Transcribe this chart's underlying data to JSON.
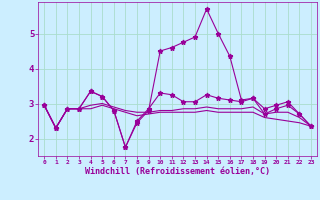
{
  "xlabel": "Windchill (Refroidissement éolien,°C)",
  "x": [
    0,
    1,
    2,
    3,
    4,
    5,
    6,
    7,
    8,
    9,
    10,
    11,
    12,
    13,
    14,
    15,
    16,
    17,
    18,
    19,
    20,
    21,
    22,
    23
  ],
  "line1": [
    2.95,
    2.3,
    2.85,
    2.85,
    3.35,
    3.2,
    2.8,
    1.75,
    2.45,
    2.8,
    4.5,
    4.6,
    4.75,
    4.9,
    5.7,
    5.0,
    4.35,
    3.1,
    3.15,
    2.85,
    2.95,
    3.05,
    2.7,
    2.35
  ],
  "line2": [
    2.95,
    2.3,
    2.85,
    2.85,
    3.35,
    3.2,
    2.8,
    1.75,
    2.5,
    2.85,
    3.3,
    3.25,
    3.05,
    3.05,
    3.25,
    3.15,
    3.1,
    3.05,
    3.15,
    2.7,
    2.85,
    2.95,
    2.7,
    2.35
  ],
  "line3": [
    2.95,
    2.3,
    2.85,
    2.85,
    2.85,
    2.95,
    2.85,
    2.75,
    2.65,
    2.7,
    2.75,
    2.75,
    2.75,
    2.75,
    2.8,
    2.75,
    2.75,
    2.75,
    2.75,
    2.6,
    2.55,
    2.5,
    2.45,
    2.35
  ],
  "line4": [
    2.95,
    2.3,
    2.85,
    2.85,
    2.95,
    3.0,
    2.9,
    2.8,
    2.75,
    2.75,
    2.8,
    2.8,
    2.85,
    2.85,
    2.9,
    2.85,
    2.85,
    2.85,
    2.9,
    2.7,
    2.75,
    2.75,
    2.6,
    2.35
  ],
  "color": "#990099",
  "bg_color": "#cceeff",
  "grid_color": "#aaddcc",
  "ylim": [
    1.5,
    5.9
  ],
  "yticks": [
    2,
    3,
    4,
    5
  ],
  "xticks": [
    0,
    1,
    2,
    3,
    4,
    5,
    6,
    7,
    8,
    9,
    10,
    11,
    12,
    13,
    14,
    15,
    16,
    17,
    18,
    19,
    20,
    21,
    22,
    23
  ],
  "markersize": 3.5,
  "linewidth": 0.8
}
